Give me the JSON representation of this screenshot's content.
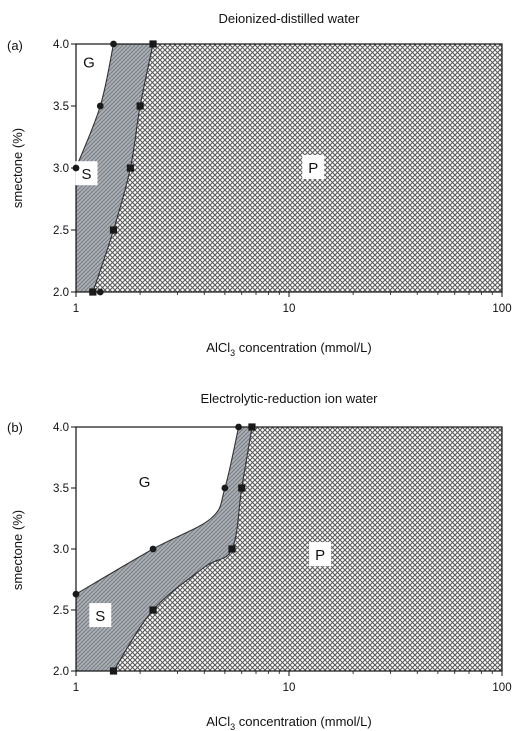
{
  "chart_data": [
    {
      "type": "area",
      "panel_label": "(a)",
      "title": "Deionized-distilled water",
      "xlabel_main": "AlCl",
      "xlabel_sub": "3",
      "xlabel_rest": " concentration (mmol/L)",
      "ylabel": "smectone (%)",
      "x_scale": "log",
      "xlim": [
        1,
        100
      ],
      "ylim": [
        2.0,
        4.0
      ],
      "x_ticks": [
        1,
        10,
        100
      ],
      "x_tick_labels": [
        "1",
        "10",
        "100"
      ],
      "y_ticks": [
        2.0,
        2.5,
        3.0,
        3.5,
        4.0
      ],
      "y_tick_labels": [
        "2.0",
        "2.5",
        "3.0",
        "3.5",
        "4.0"
      ],
      "regions": [
        {
          "label": "G",
          "at": [
            1.15,
            3.85
          ]
        },
        {
          "label": "S",
          "at": [
            1.12,
            2.95
          ]
        },
        {
          "label": "P",
          "at": [
            13,
            3.0
          ]
        }
      ],
      "series": [
        {
          "marker": "circle",
          "points": [
            [
              1.5,
              4.0
            ],
            [
              1.3,
              3.5
            ],
            [
              1.0,
              3.0
            ],
            [
              1.3,
              2.0
            ]
          ]
        },
        {
          "marker": "square",
          "points": [
            [
              2.3,
              4.0
            ],
            [
              2.0,
              3.5
            ],
            [
              1.8,
              3.0
            ],
            [
              1.5,
              2.5
            ],
            [
              1.2,
              2.0
            ]
          ]
        }
      ],
      "boundary_left": [
        [
          1.0,
          3.0
        ],
        [
          1.3,
          3.5
        ],
        [
          1.5,
          4.0
        ]
      ],
      "boundary_right": [
        [
          1.2,
          2.0
        ],
        [
          1.5,
          2.5
        ],
        [
          1.8,
          3.0
        ],
        [
          2.0,
          3.5
        ],
        [
          2.3,
          4.0
        ]
      ],
      "colors": {
        "stable": "#9ca3a8",
        "precipitate": "#595959",
        "gel": "#ffffff"
      }
    },
    {
      "type": "area",
      "panel_label": "(b)",
      "title": "Electrolytic-reduction ion water",
      "xlabel_main": "AlCl",
      "xlabel_sub": "3",
      "xlabel_rest": " concentration (mmol/L)",
      "ylabel": "smectone (%)",
      "x_scale": "log",
      "xlim": [
        1,
        100
      ],
      "ylim": [
        2.0,
        4.0
      ],
      "x_ticks": [
        1,
        10,
        100
      ],
      "x_tick_labels": [
        "1",
        "10",
        "100"
      ],
      "y_ticks": [
        2.0,
        2.5,
        3.0,
        3.5,
        4.0
      ],
      "y_tick_labels": [
        "2.0",
        "2.5",
        "3.0",
        "3.5",
        "4.0"
      ],
      "regions": [
        {
          "label": "G",
          "at": [
            2.1,
            3.55
          ]
        },
        {
          "label": "S",
          "at": [
            1.3,
            2.45
          ]
        },
        {
          "label": "P",
          "at": [
            14,
            2.95
          ]
        }
      ],
      "series": [
        {
          "marker": "circle",
          "points": [
            [
              5.8,
              4.0
            ],
            [
              5.0,
              3.5
            ],
            [
              2.3,
              3.0
            ],
            [
              1.0,
              2.63
            ]
          ]
        },
        {
          "marker": "square",
          "points": [
            [
              6.7,
              4.0
            ],
            [
              6.0,
              3.5
            ],
            [
              5.4,
              3.0
            ],
            [
              2.3,
              2.5
            ],
            [
              1.5,
              2.0
            ]
          ]
        }
      ],
      "boundary_left": [
        [
          1.0,
          2.63
        ],
        [
          2.3,
          3.0
        ],
        [
          4.3,
          3.25
        ],
        [
          5.0,
          3.5
        ],
        [
          5.8,
          4.0
        ]
      ],
      "boundary_right": [
        [
          1.5,
          2.0
        ],
        [
          2.3,
          2.5
        ],
        [
          4.0,
          2.85
        ],
        [
          5.4,
          3.0
        ],
        [
          6.0,
          3.5
        ],
        [
          6.7,
          4.0
        ]
      ],
      "colors": {
        "stable": "#9ca3a8",
        "precipitate": "#595959",
        "gel": "#ffffff"
      }
    }
  ]
}
